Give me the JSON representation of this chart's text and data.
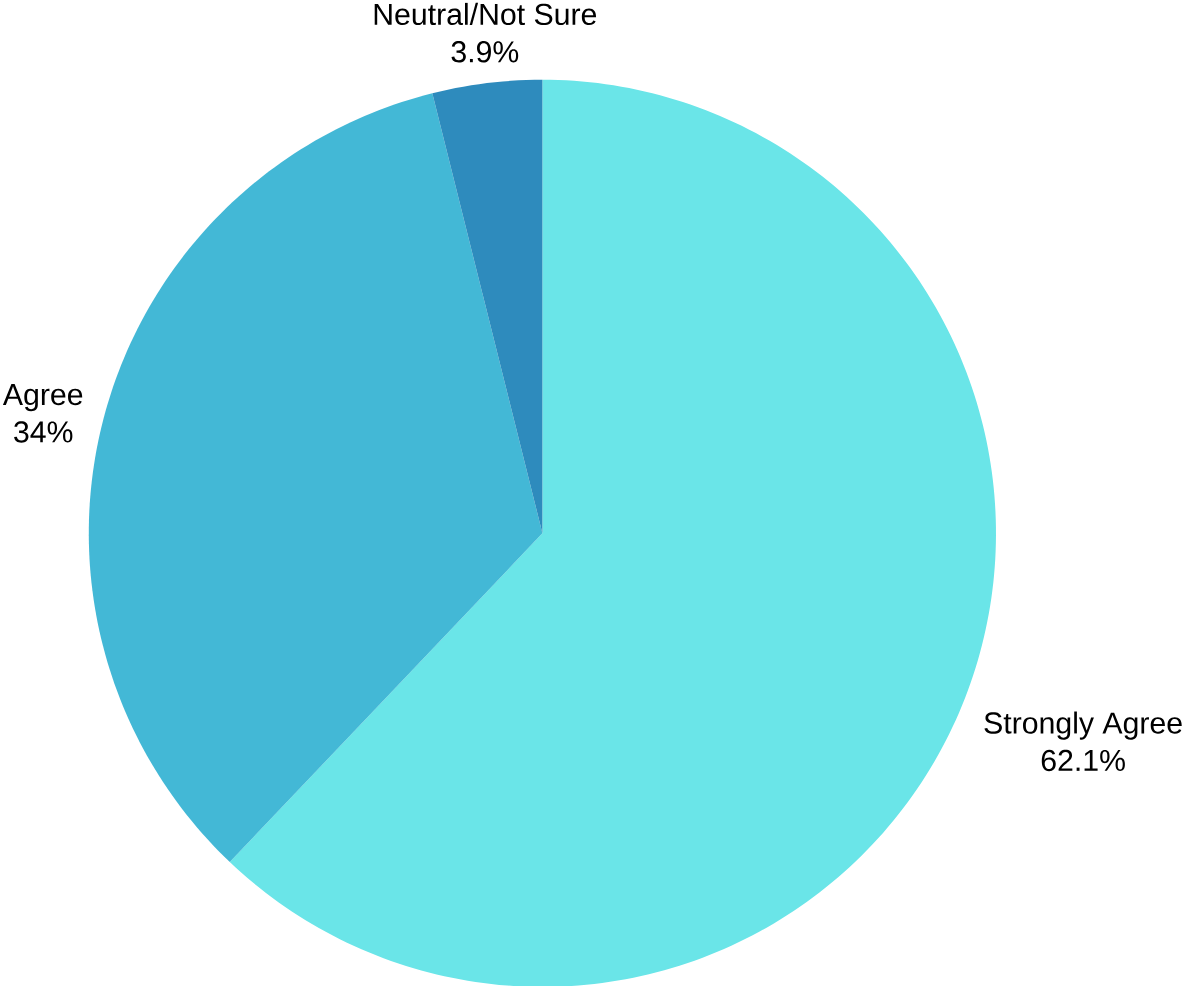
{
  "chart_data": {
    "type": "pie",
    "categories": [
      "Strongly Agree",
      "Agree",
      "Neutral/Not Sure"
    ],
    "values": [
      62.1,
      34,
      3.9
    ],
    "value_labels": [
      "62.1%",
      "34%",
      "3.9%"
    ],
    "colors": [
      "#6ae5e8",
      "#43b8d6",
      "#2e8bbd"
    ]
  }
}
